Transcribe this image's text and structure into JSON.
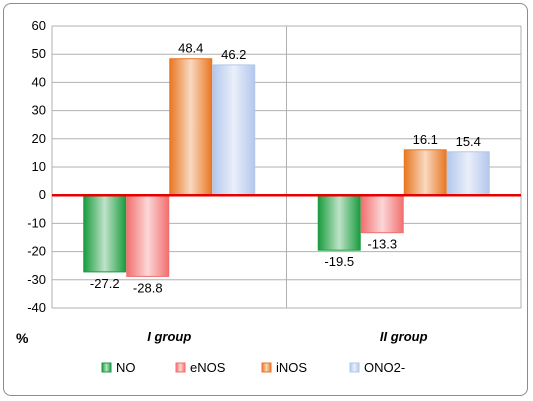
{
  "chart_data": {
    "type": "bar",
    "categories": [
      "I group",
      "II group"
    ],
    "series": [
      {
        "name": "NO",
        "values": [
          -27.2,
          -19.5
        ],
        "color": "#1a9c3e"
      },
      {
        "name": "eNOS",
        "values": [
          -28.8,
          -13.3
        ],
        "color": "#f26f6f"
      },
      {
        "name": "iNOS",
        "values": [
          48.4,
          16.1
        ],
        "color": "#e87722"
      },
      {
        "name": "ONO2-",
        "values": [
          46.2,
          15.4
        ],
        "color": "#b3c7ec"
      }
    ],
    "ylabel": "%",
    "ylim": [
      -40,
      60
    ],
    "yticks": [
      60,
      50,
      40,
      30,
      20,
      10,
      0,
      -10,
      -20,
      -30,
      -40
    ],
    "data_labels": [
      [
        "-27.2",
        "-19.5"
      ],
      [
        "-28.8",
        "-13.3"
      ],
      [
        "48.4",
        "16.1"
      ],
      [
        "46.2",
        "15.4"
      ]
    ],
    "grid": true,
    "legend_position": "bottom",
    "zero_line_color": "#e60000"
  }
}
